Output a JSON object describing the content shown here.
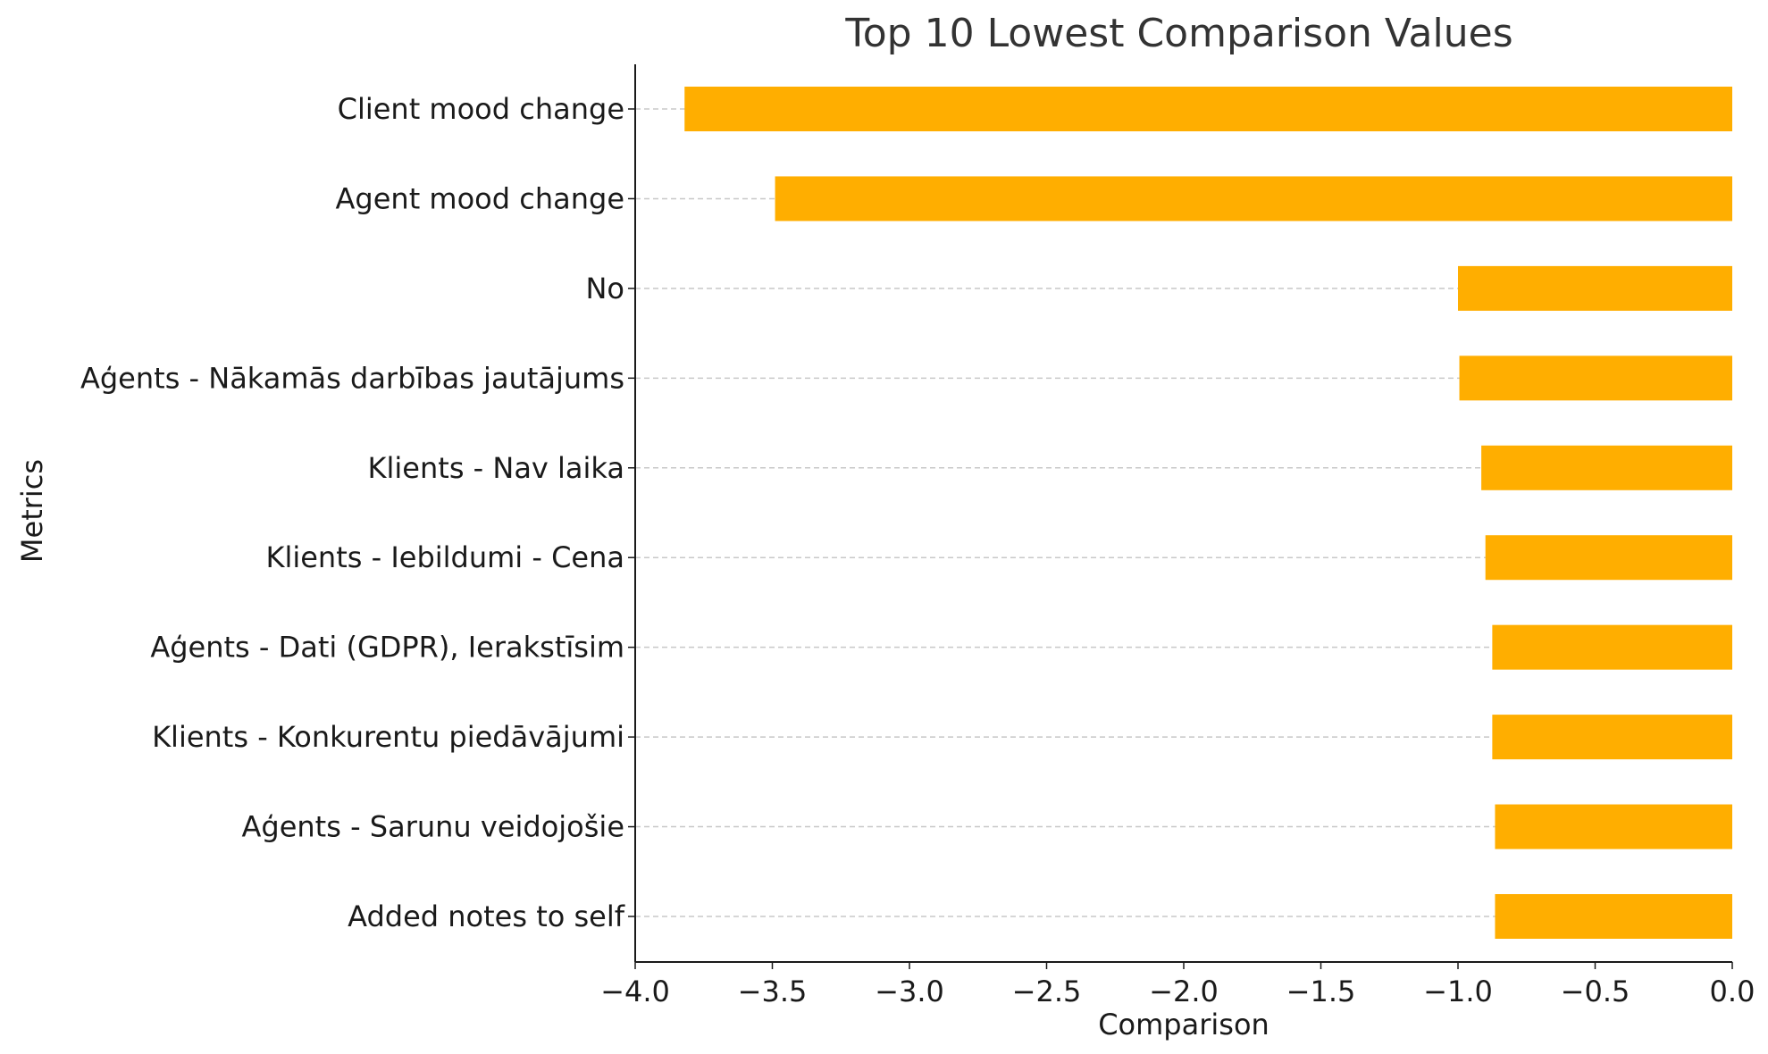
{
  "chart_data": {
    "type": "bar",
    "orientation": "horizontal",
    "title": "Top 10 Lowest Comparison Values",
    "xlabel": "Comparison",
    "ylabel": "Metrics",
    "xlim": [
      -4.0,
      0.0
    ],
    "xticks": [
      -4.0,
      -3.5,
      -3.0,
      -2.5,
      -2.0,
      -1.5,
      -1.0,
      -0.5,
      0.0
    ],
    "xtick_labels": [
      "−4.0",
      "−3.5",
      "−3.0",
      "−2.5",
      "−2.0",
      "−1.5",
      "−1.0",
      "−0.5",
      "0.0"
    ],
    "grid": "horizontal dashed",
    "bar_color": "#FFAE00",
    "categories": [
      "Client mood change",
      "Agent mood change",
      "No",
      "Aģents - Nākamās darbības jautājums",
      "Klients - Nav laika",
      "Klients - Iebildumi - Cena",
      "Aģents - Dati (GDPR), Ierakstīsim",
      "Klients - Konkurentu piedāvājumi",
      "Aģents - Sarunu veidojošie",
      "Added notes to self"
    ],
    "values": [
      -3.82,
      -3.49,
      -1.0,
      -0.995,
      -0.915,
      -0.9,
      -0.875,
      -0.875,
      -0.865,
      -0.865
    ]
  }
}
